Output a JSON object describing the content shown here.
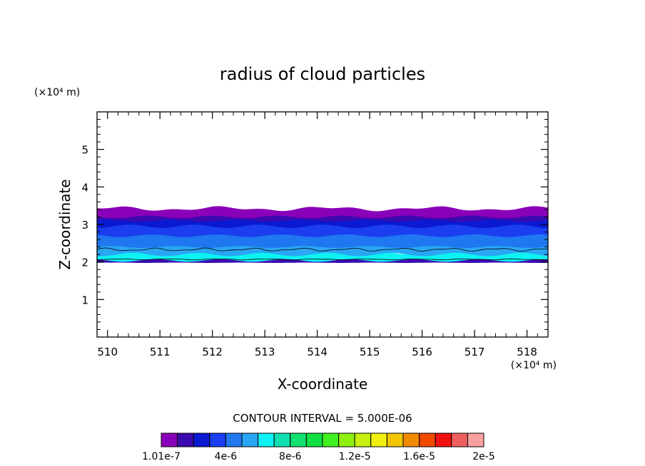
{
  "chart_data": {
    "type": "heatmap",
    "title": "radius of cloud particles",
    "xlabel": "X-coordinate",
    "ylabel": "Z-coordinate",
    "x_unit_label": "(×10⁴ m)",
    "y_unit_label": "(×10⁴ m)",
    "xlim": [
      509.8,
      518.4
    ],
    "ylim": [
      0,
      6
    ],
    "x_ticks": [
      510,
      511,
      512,
      513,
      514,
      515,
      516,
      517,
      518
    ],
    "x_tick_labels": [
      "510",
      "511",
      "512",
      "513",
      "514",
      "515",
      "516",
      "517",
      "518"
    ],
    "y_ticks": [
      1,
      2,
      3,
      4,
      5
    ],
    "y_tick_labels": [
      "1",
      "2",
      "3",
      "4",
      "5"
    ],
    "contour_interval_text": "CONTOUR INTERVAL = 5.000E-06",
    "colorbar": {
      "colors": [
        "#8a00b8",
        "#3b0ab0",
        "#0a1ad2",
        "#1a3ef0",
        "#1f78f0",
        "#2aa6f5",
        "#0df2f2",
        "#10e0b0",
        "#10e070",
        "#10e040",
        "#40f020",
        "#90f010",
        "#c8f010",
        "#f0f010",
        "#f0c800",
        "#f08a00",
        "#f04a00",
        "#f01010",
        "#f06060",
        "#f8a0a0"
      ],
      "labels": [
        "1.01e-7",
        "4e-6",
        "8e-6",
        "1.2e-5",
        "1.6e-5",
        "2e-5"
      ]
    },
    "layers": [
      {
        "name": "bottom-edge",
        "z_bottom": 1.98,
        "z_top": 2.08,
        "color": "#3b0ab0"
      },
      {
        "name": "cyan-base",
        "z_bottom": 2.04,
        "z_top": 2.28,
        "color": "#0df2f2"
      },
      {
        "name": "light-blue",
        "z_bottom": 2.2,
        "z_top": 2.5,
        "color": "#2aa6f5"
      },
      {
        "name": "mid-blue",
        "z_bottom": 2.4,
        "z_top": 2.85,
        "color": "#1f78f0"
      },
      {
        "name": "blue",
        "z_bottom": 2.7,
        "z_top": 3.1,
        "color": "#1a3ef0"
      },
      {
        "name": "dark-blue",
        "z_bottom": 2.95,
        "z_top": 3.25,
        "color": "#0a1ad2"
      },
      {
        "name": "indigo",
        "z_bottom": 3.1,
        "z_top": 3.32,
        "color": "#3b0ab0"
      },
      {
        "name": "purple-top",
        "z_bottom": 3.2,
        "z_top": 3.42,
        "color": "#8a00b8"
      }
    ]
  }
}
